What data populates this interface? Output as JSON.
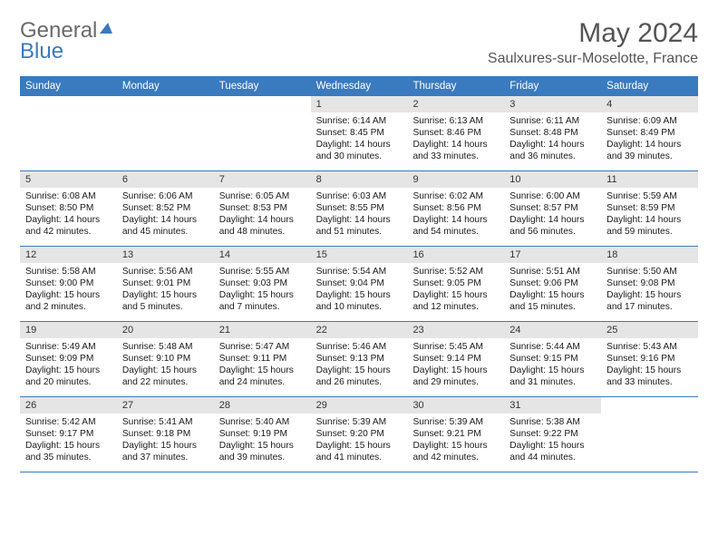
{
  "logo": {
    "part1": "General",
    "part2": "Blue"
  },
  "title": "May 2024",
  "location": "Saulxures-sur-Moselotte, France",
  "day_headers": [
    "Sunday",
    "Monday",
    "Tuesday",
    "Wednesday",
    "Thursday",
    "Friday",
    "Saturday"
  ],
  "colors": {
    "header_bg": "#3a7abf",
    "daynum_bg": "#e5e5e5",
    "text": "#1a1a1a",
    "title": "#555555"
  },
  "weeks": [
    [
      {
        "n": "",
        "s": "",
        "ss": "",
        "d": ""
      },
      {
        "n": "",
        "s": "",
        "ss": "",
        "d": ""
      },
      {
        "n": "",
        "s": "",
        "ss": "",
        "d": ""
      },
      {
        "n": "1",
        "s": "Sunrise: 6:14 AM",
        "ss": "Sunset: 8:45 PM",
        "d": "Daylight: 14 hours and 30 minutes."
      },
      {
        "n": "2",
        "s": "Sunrise: 6:13 AM",
        "ss": "Sunset: 8:46 PM",
        "d": "Daylight: 14 hours and 33 minutes."
      },
      {
        "n": "3",
        "s": "Sunrise: 6:11 AM",
        "ss": "Sunset: 8:48 PM",
        "d": "Daylight: 14 hours and 36 minutes."
      },
      {
        "n": "4",
        "s": "Sunrise: 6:09 AM",
        "ss": "Sunset: 8:49 PM",
        "d": "Daylight: 14 hours and 39 minutes."
      }
    ],
    [
      {
        "n": "5",
        "s": "Sunrise: 6:08 AM",
        "ss": "Sunset: 8:50 PM",
        "d": "Daylight: 14 hours and 42 minutes."
      },
      {
        "n": "6",
        "s": "Sunrise: 6:06 AM",
        "ss": "Sunset: 8:52 PM",
        "d": "Daylight: 14 hours and 45 minutes."
      },
      {
        "n": "7",
        "s": "Sunrise: 6:05 AM",
        "ss": "Sunset: 8:53 PM",
        "d": "Daylight: 14 hours and 48 minutes."
      },
      {
        "n": "8",
        "s": "Sunrise: 6:03 AM",
        "ss": "Sunset: 8:55 PM",
        "d": "Daylight: 14 hours and 51 minutes."
      },
      {
        "n": "9",
        "s": "Sunrise: 6:02 AM",
        "ss": "Sunset: 8:56 PM",
        "d": "Daylight: 14 hours and 54 minutes."
      },
      {
        "n": "10",
        "s": "Sunrise: 6:00 AM",
        "ss": "Sunset: 8:57 PM",
        "d": "Daylight: 14 hours and 56 minutes."
      },
      {
        "n": "11",
        "s": "Sunrise: 5:59 AM",
        "ss": "Sunset: 8:59 PM",
        "d": "Daylight: 14 hours and 59 minutes."
      }
    ],
    [
      {
        "n": "12",
        "s": "Sunrise: 5:58 AM",
        "ss": "Sunset: 9:00 PM",
        "d": "Daylight: 15 hours and 2 minutes."
      },
      {
        "n": "13",
        "s": "Sunrise: 5:56 AM",
        "ss": "Sunset: 9:01 PM",
        "d": "Daylight: 15 hours and 5 minutes."
      },
      {
        "n": "14",
        "s": "Sunrise: 5:55 AM",
        "ss": "Sunset: 9:03 PM",
        "d": "Daylight: 15 hours and 7 minutes."
      },
      {
        "n": "15",
        "s": "Sunrise: 5:54 AM",
        "ss": "Sunset: 9:04 PM",
        "d": "Daylight: 15 hours and 10 minutes."
      },
      {
        "n": "16",
        "s": "Sunrise: 5:52 AM",
        "ss": "Sunset: 9:05 PM",
        "d": "Daylight: 15 hours and 12 minutes."
      },
      {
        "n": "17",
        "s": "Sunrise: 5:51 AM",
        "ss": "Sunset: 9:06 PM",
        "d": "Daylight: 15 hours and 15 minutes."
      },
      {
        "n": "18",
        "s": "Sunrise: 5:50 AM",
        "ss": "Sunset: 9:08 PM",
        "d": "Daylight: 15 hours and 17 minutes."
      }
    ],
    [
      {
        "n": "19",
        "s": "Sunrise: 5:49 AM",
        "ss": "Sunset: 9:09 PM",
        "d": "Daylight: 15 hours and 20 minutes."
      },
      {
        "n": "20",
        "s": "Sunrise: 5:48 AM",
        "ss": "Sunset: 9:10 PM",
        "d": "Daylight: 15 hours and 22 minutes."
      },
      {
        "n": "21",
        "s": "Sunrise: 5:47 AM",
        "ss": "Sunset: 9:11 PM",
        "d": "Daylight: 15 hours and 24 minutes."
      },
      {
        "n": "22",
        "s": "Sunrise: 5:46 AM",
        "ss": "Sunset: 9:13 PM",
        "d": "Daylight: 15 hours and 26 minutes."
      },
      {
        "n": "23",
        "s": "Sunrise: 5:45 AM",
        "ss": "Sunset: 9:14 PM",
        "d": "Daylight: 15 hours and 29 minutes."
      },
      {
        "n": "24",
        "s": "Sunrise: 5:44 AM",
        "ss": "Sunset: 9:15 PM",
        "d": "Daylight: 15 hours and 31 minutes."
      },
      {
        "n": "25",
        "s": "Sunrise: 5:43 AM",
        "ss": "Sunset: 9:16 PM",
        "d": "Daylight: 15 hours and 33 minutes."
      }
    ],
    [
      {
        "n": "26",
        "s": "Sunrise: 5:42 AM",
        "ss": "Sunset: 9:17 PM",
        "d": "Daylight: 15 hours and 35 minutes."
      },
      {
        "n": "27",
        "s": "Sunrise: 5:41 AM",
        "ss": "Sunset: 9:18 PM",
        "d": "Daylight: 15 hours and 37 minutes."
      },
      {
        "n": "28",
        "s": "Sunrise: 5:40 AM",
        "ss": "Sunset: 9:19 PM",
        "d": "Daylight: 15 hours and 39 minutes."
      },
      {
        "n": "29",
        "s": "Sunrise: 5:39 AM",
        "ss": "Sunset: 9:20 PM",
        "d": "Daylight: 15 hours and 41 minutes."
      },
      {
        "n": "30",
        "s": "Sunrise: 5:39 AM",
        "ss": "Sunset: 9:21 PM",
        "d": "Daylight: 15 hours and 42 minutes."
      },
      {
        "n": "31",
        "s": "Sunrise: 5:38 AM",
        "ss": "Sunset: 9:22 PM",
        "d": "Daylight: 15 hours and 44 minutes."
      },
      {
        "n": "",
        "s": "",
        "ss": "",
        "d": ""
      }
    ]
  ]
}
